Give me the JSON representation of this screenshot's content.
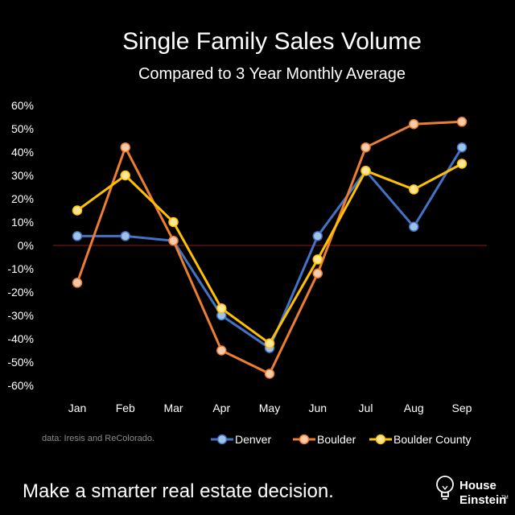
{
  "chart_data": {
    "type": "line",
    "title": "Single Family Sales Volume",
    "subtitle": "Compared to 3 Year Monthly Average",
    "categories": [
      "Jan",
      "Feb",
      "Mar",
      "Apr",
      "May",
      "Jun",
      "Jul",
      "Aug",
      "Sep"
    ],
    "ylim": [
      -60,
      60
    ],
    "yticks": [
      60,
      50,
      40,
      30,
      20,
      10,
      0,
      -10,
      -20,
      -30,
      -40,
      -50,
      -60
    ],
    "ytick_labels": [
      "60%",
      "50%",
      "40%",
      "30%",
      "20%",
      "10%",
      "0%",
      "-10%",
      "-20%",
      "-30%",
      "-40%",
      "-50%",
      "-60%"
    ],
    "series": [
      {
        "name": "Denver",
        "color": "#4472c4",
        "marker": "#9dc3e6",
        "values": [
          4,
          4,
          2,
          -30,
          -44,
          4,
          32,
          8,
          42
        ]
      },
      {
        "name": "Boulder",
        "color": "#ed7d31",
        "marker": "#f8cbad",
        "values": [
          -16,
          42,
          2,
          -45,
          -55,
          -12,
          42,
          52,
          53
        ]
      },
      {
        "name": "Boulder County",
        "color": "#ffc000",
        "marker": "#ffe699",
        "values": [
          15,
          30,
          10,
          -27,
          -42,
          -6,
          32,
          24,
          35
        ]
      }
    ],
    "zero_line_color": "#8b1a1a",
    "grid": false,
    "legend_position": "bottom-right"
  },
  "source_note": "data: Iresis and ReColorado.",
  "tagline": "Make a smarter real estate decision.",
  "brand": {
    "line1": "House",
    "line2": "Einstein",
    "tm": "TM",
    "icon": "lightbulb-icon"
  }
}
